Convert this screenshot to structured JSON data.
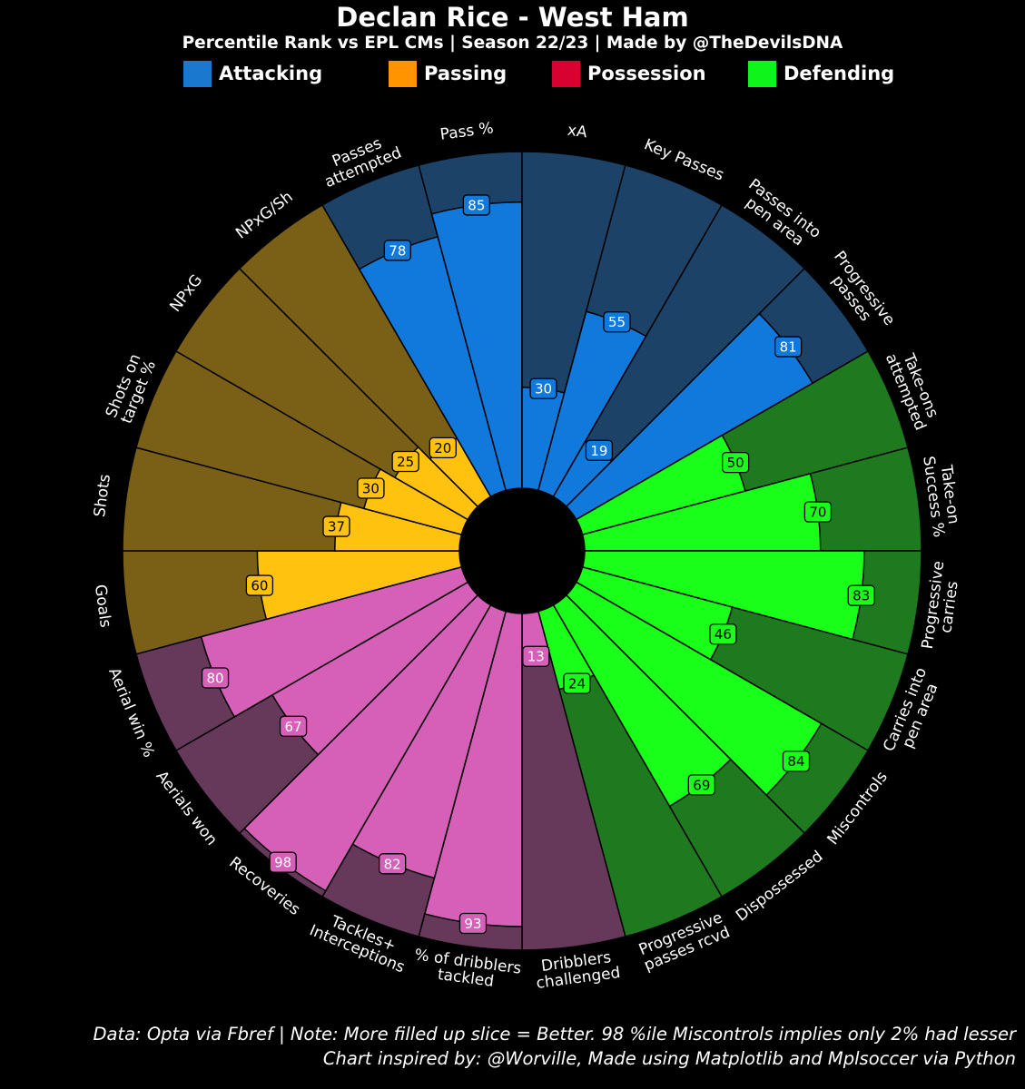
{
  "title": "Declan Rice - West Ham",
  "subtitle": "Percentile Rank vs EPL CMs | Season 22/23 | Made by @TheDevilsDNA",
  "legend": [
    {
      "label": "Attacking",
      "color": "#1a78cf"
    },
    {
      "label": "Passing",
      "color": "#ff9300"
    },
    {
      "label": "Possession",
      "color": "#d70232"
    },
    {
      "label": "Defending",
      "color": "#0ff41b"
    }
  ],
  "colors": {
    "background": "#000000",
    "slice_edge": "#000000",
    "text": "#ffffff"
  },
  "chart_data": {
    "type": "radar-pizza",
    "max_value": 100,
    "params": [
      {
        "label": "Goals",
        "value": 60,
        "color": "#ffc20e",
        "bg": "#7a5f17",
        "text_color": "#000000"
      },
      {
        "label": "Shots",
        "value": 37,
        "color": "#ffc20e",
        "bg": "#7a5f17",
        "text_color": "#000000"
      },
      {
        "label": "Shots on\ntarget %",
        "value": 30,
        "color": "#ffc20e",
        "bg": "#7a5f17",
        "text_color": "#000000"
      },
      {
        "label": "NPxG",
        "value": 25,
        "color": "#ffc20e",
        "bg": "#7a5f17",
        "text_color": "#000000"
      },
      {
        "label": "NPxG/Sh",
        "value": 20,
        "color": "#ffc20e",
        "bg": "#7a5f17",
        "text_color": "#000000"
      },
      {
        "label": "Passes\nattempted",
        "value": 78,
        "color": "#1178dc",
        "bg": "#1d4268",
        "text_color": "#ffffff"
      },
      {
        "label": "Pass %",
        "value": 85,
        "color": "#1178dc",
        "bg": "#1d4268",
        "text_color": "#ffffff"
      },
      {
        "label": "xA",
        "value": 30,
        "color": "#1178dc",
        "bg": "#1d4268",
        "text_color": "#ffffff"
      },
      {
        "label": "Key Passes",
        "value": 55,
        "color": "#1178dc",
        "bg": "#1d4268",
        "text_color": "#ffffff"
      },
      {
        "label": "Passes into\npen area",
        "value": 19,
        "color": "#1178dc",
        "bg": "#1d4268",
        "text_color": "#ffffff"
      },
      {
        "label": "Progressive\npasses",
        "value": 81,
        "color": "#1178dc",
        "bg": "#1d4268",
        "text_color": "#ffffff"
      },
      {
        "label": "Take-ons\nattempted",
        "value": 50,
        "color": "#1aff1a",
        "bg": "#1f7a1f",
        "text_color": "#000000"
      },
      {
        "label": "Take-on\nSuccess %",
        "value": 70,
        "color": "#1aff1a",
        "bg": "#1f7a1f",
        "text_color": "#000000"
      },
      {
        "label": "Progressive\ncarries",
        "value": 83,
        "color": "#1aff1a",
        "bg": "#1f7a1f",
        "text_color": "#000000"
      },
      {
        "label": "Carries into\npen area",
        "value": 46,
        "color": "#1aff1a",
        "bg": "#1f7a1f",
        "text_color": "#000000"
      },
      {
        "label": "Miscontrols",
        "value": 84,
        "color": "#1aff1a",
        "bg": "#1f7a1f",
        "text_color": "#000000"
      },
      {
        "label": "Dispossessed",
        "value": 69,
        "color": "#1aff1a",
        "bg": "#1f7a1f",
        "text_color": "#000000"
      },
      {
        "label": "Progressive\npasses rcvd",
        "value": 24,
        "color": "#1aff1a",
        "bg": "#1f7a1f",
        "text_color": "#000000"
      },
      {
        "label": "Dribblers\nchallenged",
        "value": 13,
        "color": "#d65fb8",
        "bg": "#66385a",
        "text_color": "#ffffff"
      },
      {
        "label": "% of dribblers\ntackled",
        "value": 93,
        "color": "#d65fb8",
        "bg": "#66385a",
        "text_color": "#ffffff"
      },
      {
        "label": "Tackles+\nInterceptions",
        "value": 82,
        "color": "#d65fb8",
        "bg": "#66385a",
        "text_color": "#ffffff"
      },
      {
        "label": "Recoveries",
        "value": 98,
        "color": "#d65fb8",
        "bg": "#66385a",
        "text_color": "#ffffff"
      },
      {
        "label": "Aerials won",
        "value": 67,
        "color": "#d65fb8",
        "bg": "#66385a",
        "text_color": "#ffffff"
      },
      {
        "label": "Aerial win %",
        "value": 80,
        "color": "#d65fb8",
        "bg": "#66385a",
        "text_color": "#ffffff"
      }
    ]
  },
  "footer": {
    "line1": "Data: Opta via Fbref | Note: More filled up slice = Better. 98 %ile Miscontrols implies only 2% had lesser",
    "line2": "Chart inspired by: @Worville, Made using Matplotlib and Mplsoccer via Python"
  }
}
